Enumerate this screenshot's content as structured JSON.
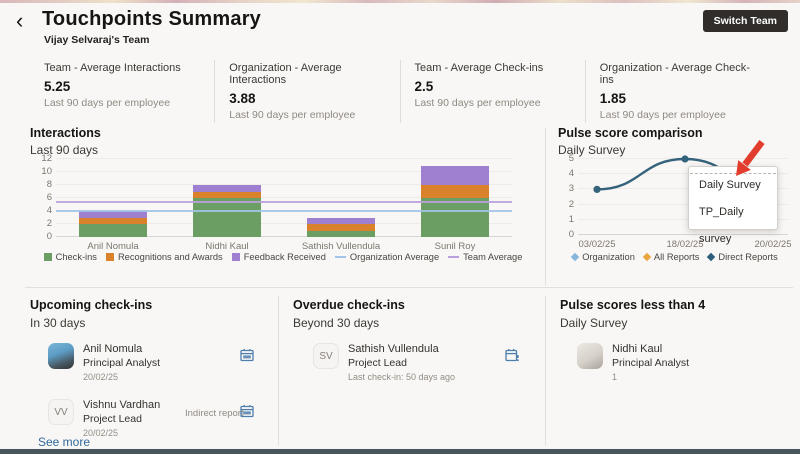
{
  "header": {
    "back_icon": "‹",
    "title": "Touchpoints Summary",
    "subtitle": "Vijay Selvaraj's Team",
    "switch_team_label": "Switch Team"
  },
  "kpis": [
    {
      "label": "Team - Average Interactions",
      "value": "5.25",
      "caption": "Last 90 days per employee"
    },
    {
      "label": "Organization - Average Interactions",
      "value": "3.88",
      "caption": "Last 90 days per employee"
    },
    {
      "label": "Team - Average Check-ins",
      "value": "2.5",
      "caption": "Last 90 days per employee"
    },
    {
      "label": "Organization - Average Check-ins",
      "value": "1.85",
      "caption": "Last 90 days per employee"
    }
  ],
  "chart_data": [
    {
      "type": "bar",
      "stacked": true,
      "title": "Interactions",
      "subtitle": "Last 90 days",
      "categories": [
        "Anil Nomula",
        "Nidhi Kaul",
        "Sathish Vullendula",
        "Sunil Roy"
      ],
      "series": [
        {
          "name": "Check-ins",
          "color": "#6b9e63",
          "values": [
            2,
            6,
            1,
            6
          ]
        },
        {
          "name": "Recognitions and Awards",
          "color": "#d9822b",
          "values": [
            1,
            1,
            1,
            2
          ]
        },
        {
          "name": "Feedback Received",
          "color": "#9e7fd0",
          "values": [
            1,
            1,
            1,
            3
          ]
        }
      ],
      "reference_lines": [
        {
          "name": "Organization Average",
          "value": 3.88,
          "color": "#a3c4e8"
        },
        {
          "name": "Team Average",
          "value": 5.25,
          "color": "#b9a0dc"
        }
      ],
      "ylim": [
        0,
        12
      ],
      "yticks": [
        0,
        2,
        4,
        6,
        8,
        10,
        12
      ],
      "grid": true,
      "legend_position": "bottom"
    },
    {
      "type": "line",
      "title": "Pulse score comparison",
      "subtitle": "Daily Survey",
      "x": [
        "03/02/25",
        "18/02/25",
        "20/02/25"
      ],
      "series": [
        {
          "name": "Direct Reports",
          "color": "#35637c",
          "values": [
            3,
            5,
            3
          ]
        }
      ],
      "legend": [
        {
          "name": "Organization",
          "color": "#85b7dd"
        },
        {
          "name": "All Reports",
          "color": "#e9a63e"
        },
        {
          "name": "Direct Reports",
          "color": "#2e5d79"
        }
      ],
      "ylim": [
        0,
        5
      ],
      "yticks": [
        0,
        1,
        2,
        3,
        4,
        5
      ],
      "grid": true,
      "legend_position": "bottom"
    }
  ],
  "survey_popup": {
    "items": [
      "Daily Survey",
      "TP_Daily survey"
    ]
  },
  "sections": {
    "upcoming": {
      "title": "Upcoming check-ins",
      "subtitle": "In 30 days",
      "rows": [
        {
          "avatar": "photo-blue",
          "initials": "",
          "name": "Anil Nomula",
          "role": "Principal Analyst",
          "note": "20/02/25",
          "tag": "",
          "icon": "calendar-icon"
        },
        {
          "avatar": "initials",
          "initials": "VV",
          "name": "Vishnu Vardhan",
          "role": "Project Lead",
          "note": "20/02/25",
          "tag": "Indirect report",
          "icon": "calendar-icon"
        }
      ],
      "see_more_label": "See more"
    },
    "overdue": {
      "title": "Overdue check-ins",
      "subtitle": "Beyond 30 days",
      "rows": [
        {
          "avatar": "initials",
          "initials": "SV",
          "name": "Sathish Vullendula",
          "role": "Project Lead",
          "note": "Last check-in: 50 days ago",
          "tag": "",
          "icon": "calendar-alert-icon"
        }
      ]
    },
    "low_pulse": {
      "title": "Pulse scores less than 4",
      "subtitle": "Daily Survey",
      "rows": [
        {
          "avatar": "photo-light",
          "initials": "",
          "name": "Nidhi Kaul",
          "role": "Principal Analyst",
          "note": "1",
          "tag": "",
          "icon": ""
        }
      ]
    }
  },
  "ui_colors": {
    "button_bg": "#312d2a",
    "link": "#31689b",
    "icon_blue": "#4d7fae",
    "arrow_red": "#e23c2e",
    "bottom_bar": "#46565b"
  }
}
